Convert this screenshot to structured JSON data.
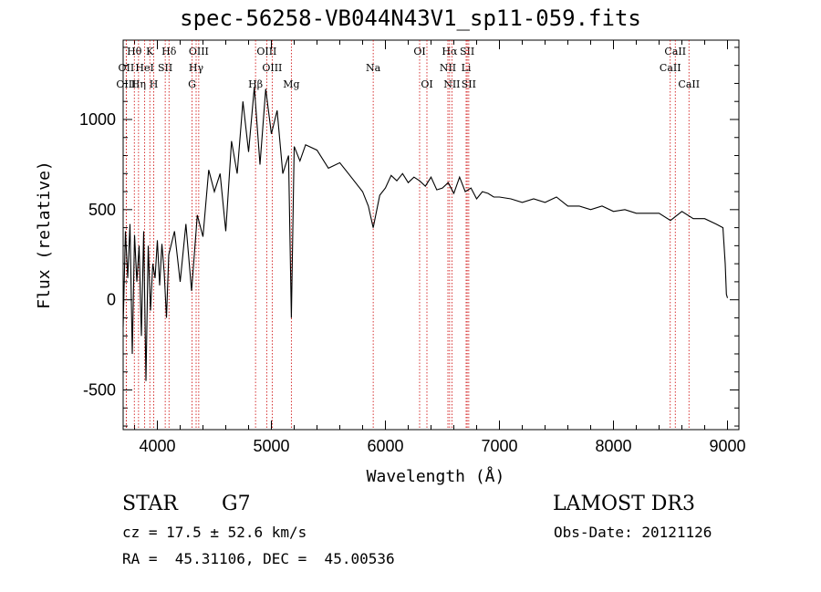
{
  "chart_data": {
    "type": "line",
    "title": "spec-56258-VB044N43V1_sp11-059.fits",
    "xlabel": "Wavelength (Å)",
    "ylabel": "Flux (relative)",
    "xlim": [
      3700,
      9100
    ],
    "ylim": [
      -720,
      1440
    ],
    "xticks": [
      4000,
      5000,
      6000,
      7000,
      8000,
      9000
    ],
    "yticks": [
      -500,
      0,
      500,
      1000
    ],
    "lines": [
      {
        "label": "Hθ",
        "wave": 3798,
        "row": 1
      },
      {
        "label": "OII",
        "wave": 3727,
        "row": 2
      },
      {
        "label": "OIII",
        "wave": 3727,
        "row": 3
      },
      {
        "label": "K",
        "wave": 3934,
        "row": 1
      },
      {
        "label": "HeI",
        "wave": 3889,
        "row": 2
      },
      {
        "label": "Hη",
        "wave": 3835,
        "row": 3
      },
      {
        "label": "H",
        "wave": 3968,
        "row": 3
      },
      {
        "label": "SII",
        "wave": 4069,
        "row": 2
      },
      {
        "label": "Hδ",
        "wave": 4102,
        "row": 1
      },
      {
        "label": "OIII",
        "wave": 4363,
        "row": 1
      },
      {
        "label": "Hγ",
        "wave": 4340,
        "row": 2
      },
      {
        "label": "G",
        "wave": 4304,
        "row": 3
      },
      {
        "label": "Hβ",
        "wave": 4861,
        "row": 3
      },
      {
        "label": "OIII",
        "wave": 4959,
        "row": 1
      },
      {
        "label": "OIII",
        "wave": 5007,
        "row": 2
      },
      {
        "label": "Mg",
        "wave": 5175,
        "row": 3
      },
      {
        "label": "Na",
        "wave": 5893,
        "row": 2
      },
      {
        "label": "OI",
        "wave": 6300,
        "row": 1
      },
      {
        "label": "OI",
        "wave": 6364,
        "row": 3
      },
      {
        "label": "Hα",
        "wave": 6563,
        "row": 1
      },
      {
        "label": "NII",
        "wave": 6548,
        "row": 2
      },
      {
        "label": "NII",
        "wave": 6583,
        "row": 3
      },
      {
        "label": "SII",
        "wave": 6717,
        "row": 1
      },
      {
        "label": "Li",
        "wave": 6708,
        "row": 2
      },
      {
        "label": "SII",
        "wave": 6731,
        "row": 3
      },
      {
        "label": "CaII",
        "wave": 8542,
        "row": 1
      },
      {
        "label": "CaII",
        "wave": 8498,
        "row": 2
      },
      {
        "label": "CaII",
        "wave": 8662,
        "row": 3
      }
    ],
    "series": [
      {
        "name": "flux",
        "x": [
          3700,
          3720,
          3740,
          3760,
          3780,
          3800,
          3820,
          3840,
          3860,
          3880,
          3900,
          3920,
          3940,
          3960,
          3980,
          4000,
          4020,
          4040,
          4060,
          4080,
          4100,
          4150,
          4200,
          4250,
          4300,
          4350,
          4400,
          4450,
          4500,
          4550,
          4600,
          4650,
          4700,
          4750,
          4800,
          4850,
          4900,
          4950,
          5000,
          5050,
          5100,
          5150,
          5175,
          5200,
          5250,
          5300,
          5400,
          5500,
          5600,
          5700,
          5800,
          5850,
          5893,
          5950,
          6000,
          6050,
          6100,
          6150,
          6200,
          6250,
          6300,
          6350,
          6400,
          6450,
          6500,
          6550,
          6600,
          6650,
          6700,
          6750,
          6800,
          6850,
          6900,
          6950,
          7000,
          7100,
          7200,
          7300,
          7400,
          7500,
          7600,
          7700,
          7800,
          7900,
          8000,
          8100,
          8200,
          8300,
          8400,
          8500,
          8600,
          8700,
          8800,
          8900,
          8960,
          8980,
          8990,
          9000
        ],
        "y": [
          -150,
          380,
          120,
          420,
          -300,
          360,
          100,
          300,
          -200,
          380,
          -450,
          300,
          -60,
          200,
          120,
          330,
          80,
          310,
          150,
          -100,
          250,
          380,
          100,
          420,
          50,
          470,
          350,
          720,
          600,
          700,
          380,
          880,
          700,
          1100,
          820,
          1180,
          750,
          1170,
          920,
          1050,
          700,
          800,
          -100,
          850,
          770,
          860,
          830,
          730,
          760,
          680,
          600,
          520,
          400,
          580,
          620,
          690,
          660,
          700,
          650,
          680,
          660,
          630,
          680,
          610,
          620,
          650,
          590,
          680,
          600,
          620,
          560,
          600,
          590,
          570,
          570,
          560,
          540,
          560,
          540,
          570,
          520,
          520,
          500,
          520,
          490,
          500,
          480,
          480,
          480,
          440,
          490,
          450,
          450,
          420,
          400,
          200,
          30,
          10
        ]
      }
    ]
  },
  "footer": {
    "object": "STAR",
    "subclass": "G7",
    "survey": "LAMOST DR3",
    "cz": "cz = 17.5 ± 52.6 km/s",
    "obs_date": "Obs-Date: 20121126",
    "coords": "RA =  45.31106, DEC =  45.00536"
  },
  "colors": {
    "spectrum": "#000000",
    "lines": "#cc0000",
    "axes": "#000000"
  }
}
